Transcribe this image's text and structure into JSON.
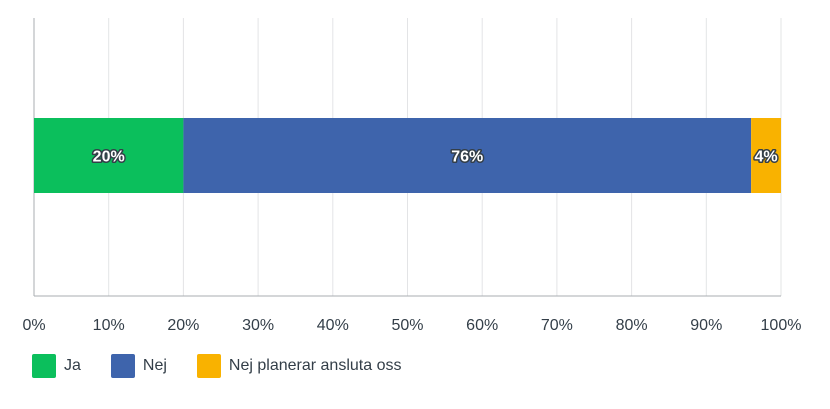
{
  "chart_data": {
    "type": "bar",
    "orientation": "horizontal",
    "stacked": true,
    "categories": [
      ""
    ],
    "series": [
      {
        "name": "Ja",
        "values": [
          20
        ],
        "label": "20%",
        "color": "#0bbf5c"
      },
      {
        "name": "Nej",
        "values": [
          76
        ],
        "label": "76%",
        "color": "#3e64ac"
      },
      {
        "name": "Nej planerar ansluta oss",
        "values": [
          4
        ],
        "label": "4%",
        "color": "#f9b200"
      }
    ],
    "xlim": [
      0,
      100
    ],
    "x_ticks": [
      "0%",
      "10%",
      "20%",
      "30%",
      "40%",
      "50%",
      "60%",
      "70%",
      "80%",
      "90%",
      "100%"
    ],
    "grid": true,
    "legend_position": "bottom-left"
  }
}
